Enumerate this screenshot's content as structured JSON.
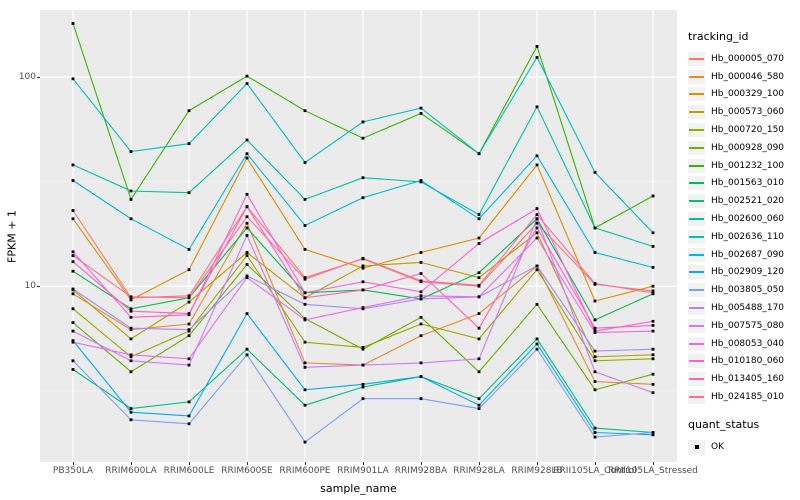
{
  "figure": {
    "y_axis": {
      "title": "FPKM + 1",
      "major_ticks": [
        {
          "label": "100",
          "value": 100
        },
        {
          "label": "10",
          "value": 10
        }
      ],
      "minor_tick_values": [
        31.62,
        3.162
      ],
      "log10_domain": [
        0.16,
        2.32
      ]
    },
    "x_axis": {
      "title": "sample_name"
    },
    "legend": {
      "tracking_title": "tracking_id",
      "quant_title": "quant_status",
      "quant_items": [
        {
          "label": "OK",
          "marker": "black-square"
        }
      ]
    },
    "colors": {
      "panel_bg": "#EBEBEB",
      "grid_major": "#FFFFFF",
      "grid_minor": "#F5F5F5",
      "point": "#000000",
      "tick_text": "#4D4D4D",
      "axis_title_text": "#000000",
      "legend_key_bg": "#F2F2F2"
    }
  },
  "chart_data": {
    "type": "line",
    "title": "",
    "xlabel": "sample_name",
    "ylabel": "FPKM + 1",
    "y_scale": "log10",
    "ylim": [
      1.45,
      210
    ],
    "y_major_ticks": [
      10,
      100
    ],
    "grid": "on",
    "legend_position": "right",
    "marker": "black-square",
    "categories": [
      "PB350LA",
      "RRIM600LA",
      "RRIM600LE",
      "RRIM600SE",
      "RRIM600PE",
      "RRIM901LA",
      "RRIM928BA",
      "RRIM928LA",
      "RRIM928LB",
      "RRII105LA_Control",
      "RRII105LA_Stressed"
    ],
    "series": [
      {
        "name": "Hb_000005_070",
        "color": "#F8766D",
        "values": [
          23,
          8.8,
          9.0,
          24,
          11,
          13.5,
          10.5,
          10,
          20,
          10.2,
          9.5
        ]
      },
      {
        "name": "Hb_000046_580",
        "color": "#E98A2F",
        "values": [
          9.2,
          6.2,
          6.6,
          20,
          4.3,
          4.2,
          5.8,
          7.4,
          12.5,
          3.5,
          3.4
        ]
      },
      {
        "name": "Hb_000329_100",
        "color": "#D89000",
        "values": [
          21,
          8.6,
          12,
          41,
          15,
          12.2,
          14.5,
          17,
          38,
          8.5,
          10
        ]
      },
      {
        "name": "Hb_000573_060",
        "color": "#BC9D00",
        "values": [
          9.6,
          5.6,
          8.4,
          14.5,
          8.8,
          12.5,
          13,
          11,
          18,
          4.6,
          4.7
        ]
      },
      {
        "name": "Hb_000720_150",
        "color": "#9DA702",
        "values": [
          7.8,
          4.6,
          6.1,
          14.0,
          5.4,
          5.1,
          6.6,
          5.6,
          12,
          4.4,
          4.5
        ]
      },
      {
        "name": "Hb_000928_090",
        "color": "#6FB000",
        "values": [
          6.7,
          3.9,
          5.8,
          12.7,
          7.0,
          5.0,
          7.1,
          3.9,
          8.2,
          3.2,
          3.8
        ]
      },
      {
        "name": "Hb_001232_100",
        "color": "#39B600",
        "values": [
          180,
          26,
          69,
          101,
          69,
          51,
          67,
          43,
          140,
          19,
          27
        ]
      },
      {
        "name": "Hb_001563_010",
        "color": "#00BB4E",
        "values": [
          11.8,
          7.8,
          8.8,
          19,
          9.3,
          9.6,
          8.7,
          11.6,
          21,
          6.9,
          9.2
        ]
      },
      {
        "name": "Hb_002521_020",
        "color": "#00BF7D",
        "values": [
          4.0,
          2.6,
          2.8,
          5.0,
          2.7,
          3.3,
          3.7,
          2.9,
          5.6,
          2.1,
          2.0
        ]
      },
      {
        "name": "Hb_002600_060",
        "color": "#00C1A7",
        "values": [
          38,
          28.5,
          28,
          50,
          26,
          33,
          31.5,
          22,
          72,
          19,
          15.5
        ]
      },
      {
        "name": "Hb_002636_110",
        "color": "#00BFC4",
        "values": [
          98,
          44,
          48,
          93,
          39,
          61,
          71,
          43,
          124,
          35,
          18
        ]
      },
      {
        "name": "Hb_002687_090",
        "color": "#00B8E5",
        "values": [
          32,
          21,
          15,
          43,
          19.5,
          26.5,
          32,
          21,
          42,
          14.5,
          12.3
        ]
      },
      {
        "name": "Hb_002909_120",
        "color": "#00A9FF",
        "values": [
          5.5,
          2.5,
          2.4,
          7.4,
          3.2,
          3.4,
          3.7,
          2.7,
          5.3,
          2.0,
          1.95
        ]
      },
      {
        "name": "Hb_003805_050",
        "color": "#7C9EFF",
        "values": [
          4.4,
          2.3,
          2.2,
          4.7,
          1.8,
          2.9,
          2.9,
          2.6,
          5.0,
          1.9,
          2.0
        ]
      },
      {
        "name": "Hb_005488_170",
        "color": "#A58AFF",
        "values": [
          9.7,
          6.3,
          6.2,
          11.2,
          8.2,
          7.8,
          8.7,
          8.9,
          12.5,
          4.9,
          5.0
        ]
      },
      {
        "name": "Hb_007575_080",
        "color": "#CD79FF",
        "values": [
          6.1,
          4.4,
          4.2,
          17.5,
          4.1,
          4.2,
          4.3,
          4.5,
          21,
          3.9,
          3.1
        ]
      },
      {
        "name": "Hb_008053_040",
        "color": "#EC69EF",
        "values": [
          5.4,
          4.7,
          4.5,
          11,
          6.9,
          7.9,
          9.0,
          8.9,
          17,
          6.0,
          6.1
        ]
      },
      {
        "name": "Hb_010180_060",
        "color": "#FB61D7",
        "values": [
          14.6,
          7.1,
          7.3,
          27.5,
          9.3,
          10.5,
          9.4,
          16,
          23.5,
          6.1,
          6.8
        ]
      },
      {
        "name": "Hb_013405_160",
        "color": "#FF62BB",
        "values": [
          13.1,
          7.6,
          7.4,
          24,
          8.8,
          9.6,
          11.5,
          6.3,
          19,
          6.3,
          6.5
        ]
      },
      {
        "name": "Hb_024185_010",
        "color": "#FF6C99",
        "values": [
          14.0,
          8.9,
          8.8,
          21.5,
          10.8,
          13.6,
          10.6,
          10.1,
          22,
          10.3,
          9.3
        ]
      }
    ]
  }
}
